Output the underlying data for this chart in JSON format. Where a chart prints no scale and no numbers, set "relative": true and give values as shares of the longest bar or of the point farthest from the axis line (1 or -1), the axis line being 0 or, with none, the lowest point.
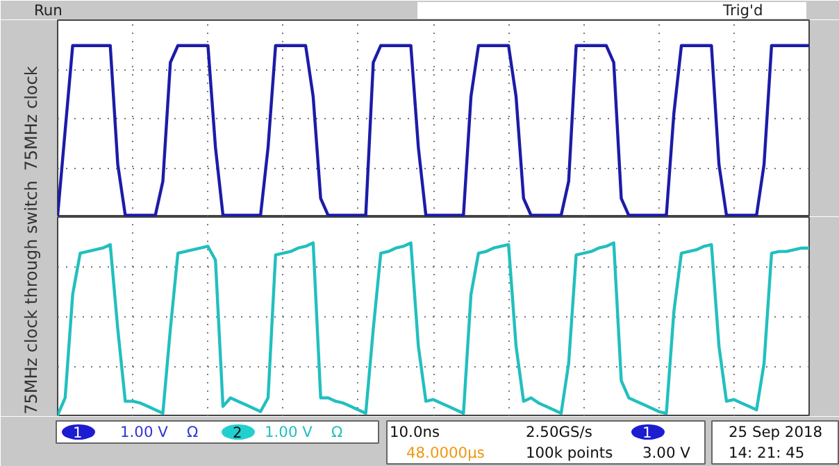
{
  "chart_data": [
    {
      "type": "line",
      "relative": true,
      "ylabel": "75MHz clock",
      "grid": true,
      "categories": [
        null,
        null,
        null,
        null,
        null,
        null,
        null,
        null,
        null,
        null,
        null,
        null,
        null,
        null,
        null,
        null,
        null,
        null,
        null,
        null,
        null,
        null,
        null,
        null,
        null,
        null,
        null,
        null,
        null,
        null,
        null,
        null,
        null,
        null,
        null,
        null,
        null,
        null,
        null,
        null,
        null,
        null,
        null,
        null,
        null,
        null,
        null,
        null,
        null,
        null,
        null,
        null,
        null,
        null,
        null,
        null,
        null,
        null,
        null,
        null,
        null,
        null,
        null,
        null,
        null,
        null,
        null,
        null,
        null,
        null,
        null,
        null,
        null,
        null,
        null,
        null,
        null,
        null,
        null,
        null,
        null,
        null,
        null,
        null,
        null,
        null,
        null,
        null,
        null,
        null,
        null,
        null,
        null,
        null,
        null,
        null,
        null,
        null,
        null,
        null,
        null
      ],
      "annotations": [
        "Run",
        "Trig'd"
      ],
      "series": [
        {
          "color": "#1c1ca8",
          "values": [
            0,
            0.5,
            1,
            1,
            1,
            1,
            1,
            1,
            0.3,
            0,
            0,
            0,
            0,
            0,
            0.2,
            0.9,
            1,
            1,
            1,
            1,
            1,
            0.4,
            0,
            0,
            0,
            0,
            0,
            0,
            0.4,
            1,
            1,
            1,
            1,
            1,
            0.7,
            0.1,
            0,
            0,
            0,
            0,
            0,
            0,
            0.9,
            1,
            1,
            1,
            1,
            1,
            0.4,
            0,
            0,
            0,
            0,
            0,
            0,
            0.7,
            1,
            1,
            1,
            1,
            1,
            0.7,
            0.1,
            0,
            0,
            0,
            0,
            0,
            0.2,
            1,
            1,
            1,
            1,
            1,
            0.9,
            0.1,
            0,
            0,
            0,
            0,
            0,
            0,
            0.6,
            1,
            1,
            1,
            1,
            1,
            0.3,
            0,
            0,
            0,
            0,
            0,
            0.3,
            1,
            1,
            1,
            1,
            1,
            1
          ]
        }
      ]
    },
    {
      "type": "line",
      "relative": true,
      "ylabel": "75MHz clock through switch",
      "grid": true,
      "categories": [
        null,
        null,
        null,
        null,
        null,
        null,
        null,
        null,
        null,
        null,
        null,
        null,
        null,
        null,
        null,
        null,
        null,
        null,
        null,
        null,
        null,
        null,
        null,
        null,
        null,
        null,
        null,
        null,
        null,
        null,
        null,
        null,
        null,
        null,
        null,
        null,
        null,
        null,
        null,
        null,
        null,
        null,
        null,
        null,
        null,
        null,
        null,
        null,
        null,
        null,
        null,
        null,
        null,
        null,
        null,
        null,
        null,
        null,
        null,
        null,
        null,
        null,
        null,
        null,
        null,
        null,
        null,
        null,
        null,
        null,
        null,
        null,
        null,
        null,
        null,
        null,
        null,
        null,
        null,
        null,
        null,
        null,
        null,
        null,
        null,
        null,
        null,
        null,
        null,
        null,
        null,
        null,
        null,
        null,
        null,
        null,
        null,
        null,
        null,
        null,
        null
      ],
      "annotations": [
        "1",
        "1.00 V",
        "Ω",
        "2",
        "1.00 V",
        "Ω",
        "10.0ns",
        "2.50GS/s",
        "1",
        "48.0000µs",
        "100k points",
        "3.00 V",
        "25 Sep 2018",
        "14: 21: 45"
      ],
      "series": [
        {
          "color": "#22bfbf",
          "values": [
            0,
            0.1,
            0.7,
            0.94,
            0.95,
            0.96,
            0.97,
            0.99,
            0.5,
            0.08,
            0.08,
            0.07,
            0.05,
            0.03,
            0.01,
            0.5,
            0.94,
            0.95,
            0.96,
            0.97,
            0.98,
            0.9,
            0.05,
            0.1,
            0.08,
            0.06,
            0.04,
            0.02,
            0.1,
            0.93,
            0.94,
            0.95,
            0.97,
            0.98,
            1,
            0.1,
            0.1,
            0.08,
            0.07,
            0.05,
            0.03,
            0.01,
            0.5,
            0.94,
            0.95,
            0.97,
            0.98,
            1,
            0.4,
            0.08,
            0.09,
            0.07,
            0.05,
            0.03,
            0.01,
            0.7,
            0.94,
            0.95,
            0.97,
            0.98,
            0.99,
            0.4,
            0.08,
            0.1,
            0.07,
            0.05,
            0.03,
            0.01,
            0.3,
            0.93,
            0.94,
            0.95,
            0.97,
            0.98,
            1,
            0.2,
            0.1,
            0.08,
            0.06,
            0.04,
            0.02,
            0.01,
            0.6,
            0.94,
            0.95,
            0.96,
            0.98,
            0.99,
            0.4,
            0.08,
            0.09,
            0.07,
            0.05,
            0.03,
            0.3,
            0.94,
            0.95,
            0.95,
            0.96,
            0.97,
            0.97
          ]
        }
      ]
    }
  ]
}
